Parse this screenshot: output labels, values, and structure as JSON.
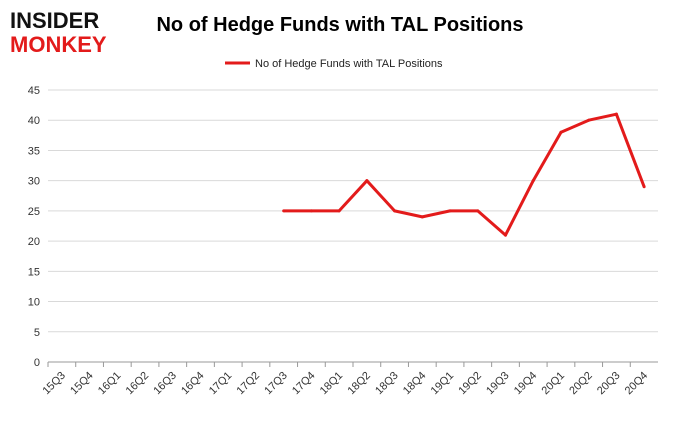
{
  "logo": {
    "line1": "INSIDER",
    "line2": "MONKEY"
  },
  "chart_data": {
    "type": "line",
    "title": "No of Hedge Funds with TAL Positions",
    "xlabel": "",
    "ylabel": "",
    "categories": [
      "15Q3",
      "15Q4",
      "16Q1",
      "16Q2",
      "16Q3",
      "16Q4",
      "17Q1",
      "17Q2",
      "17Q3",
      "17Q4",
      "18Q1",
      "18Q2",
      "18Q3",
      "18Q4",
      "19Q1",
      "19Q2",
      "19Q3",
      "19Q4",
      "20Q1",
      "20Q2",
      "20Q3",
      "20Q4"
    ],
    "series": [
      {
        "name": "No of Hedge Funds with TAL Positions",
        "color": "#e31b1b",
        "values": [
          null,
          null,
          null,
          null,
          null,
          null,
          null,
          null,
          25,
          25,
          25,
          30,
          25,
          24,
          25,
          25,
          21,
          30,
          38,
          40,
          41,
          29
        ]
      }
    ],
    "y_ticks": [
      "0",
      "5",
      "10",
      "15",
      "20",
      "25",
      "30",
      "35",
      "40",
      "45"
    ],
    "ylim": [
      0,
      45
    ],
    "grid": true,
    "legend_position": "top-center"
  }
}
